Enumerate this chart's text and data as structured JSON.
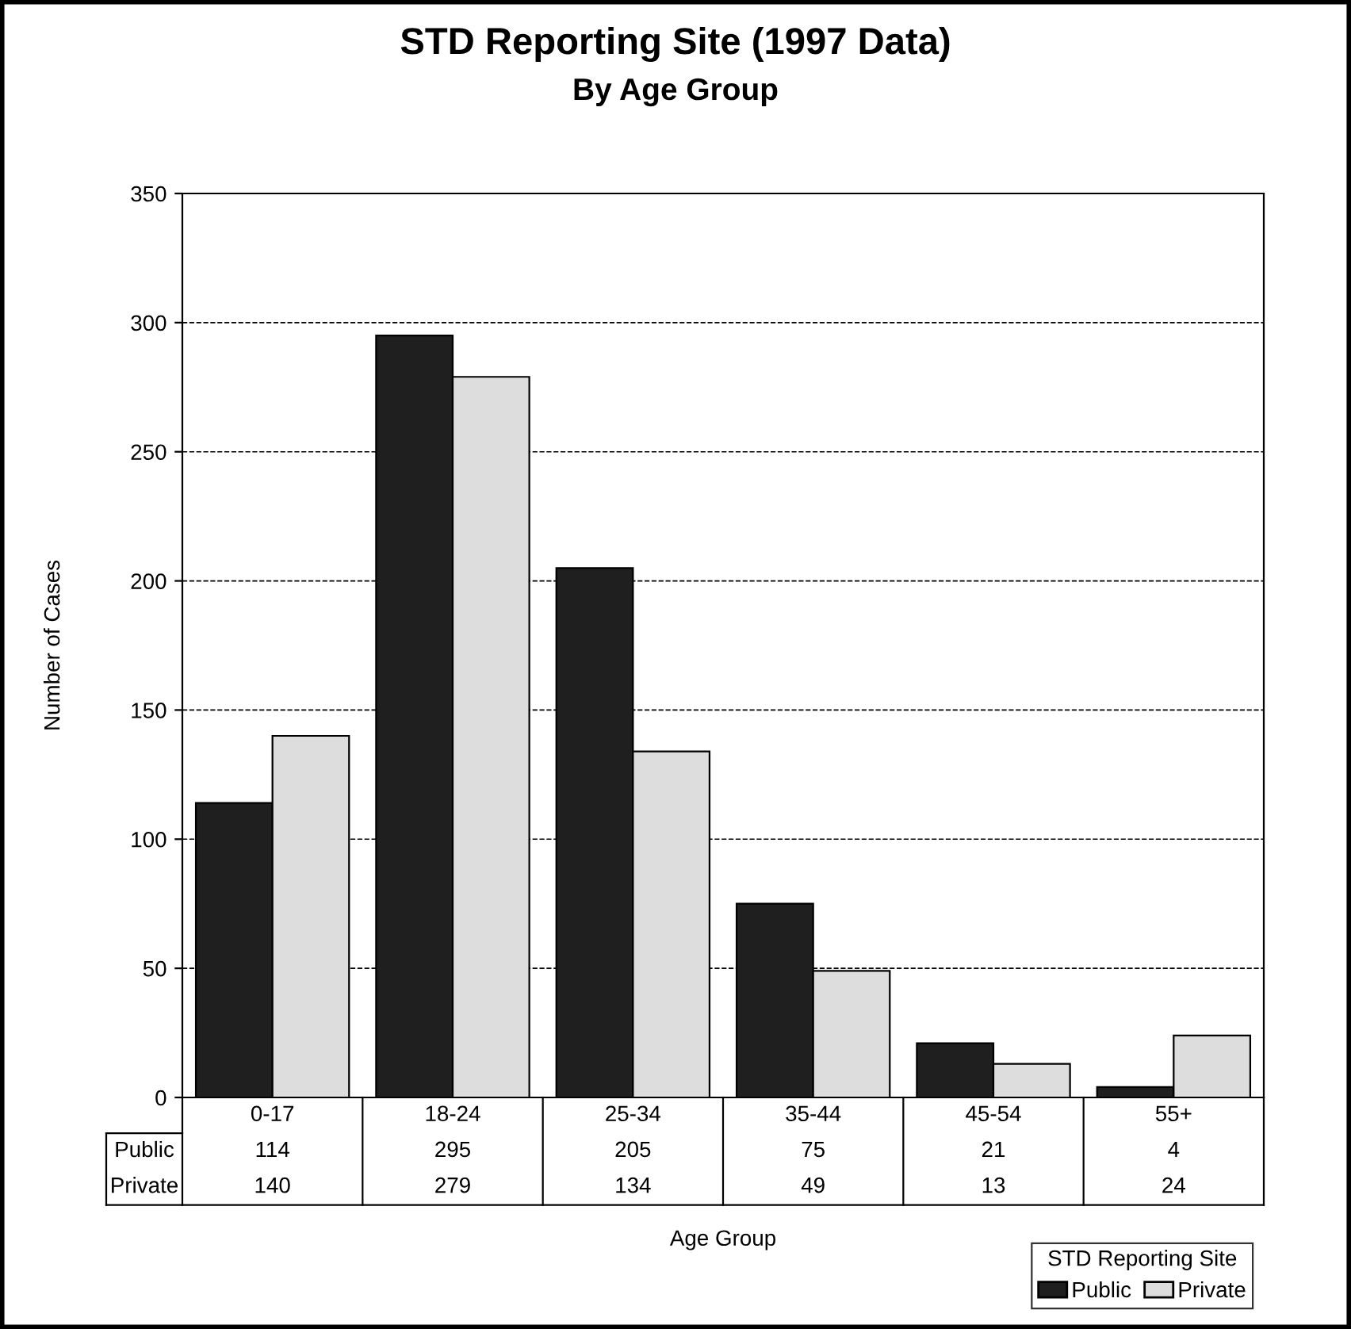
{
  "chart_data": {
    "type": "bar",
    "title": "STD Reporting Site (1997 Data)",
    "subtitle": "By Age Group",
    "xlabel": "Age Group",
    "ylabel": "Number of Cases",
    "legend_title": "STD Reporting Site",
    "categories": [
      "0-17",
      "18-24",
      "25-34",
      "35-44",
      "45-54",
      "55+"
    ],
    "series": [
      {
        "name": "Public",
        "color": "#1f1f1f",
        "values": [
          114,
          295,
          205,
          75,
          21,
          4
        ]
      },
      {
        "name": "Private",
        "color": "#dddddd",
        "values": [
          140,
          279,
          134,
          49,
          13,
          24
        ]
      }
    ],
    "ylim": [
      0,
      350
    ],
    "yticks": [
      0,
      50,
      100,
      150,
      200,
      250,
      300,
      350
    ],
    "grid": "y",
    "legend": "bottom right",
    "data_labels": true
  }
}
